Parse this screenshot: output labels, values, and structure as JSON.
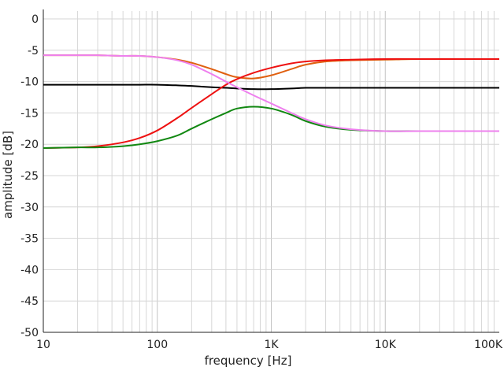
{
  "chart_data": {
    "type": "line",
    "title": "",
    "xlabel": "frequency [Hz]",
    "ylabel": "amplitude [dB]",
    "x_scale": "log",
    "xlim": [
      10,
      100000
    ],
    "ylim": [
      -50,
      0
    ],
    "x_ticks": [
      10,
      100,
      1000,
      10000,
      100000
    ],
    "x_tick_labels": [
      "10",
      "100",
      "1K",
      "10K",
      "100K"
    ],
    "y_ticks": [
      0,
      -5,
      -10,
      -15,
      -20,
      -25,
      -30,
      -35,
      -40,
      -45,
      -50
    ],
    "y_tick_labels": [
      "0",
      "-5",
      "-10",
      "-15",
      "-20",
      "-25",
      "-30",
      "-35",
      "-40",
      "-45",
      "-50"
    ],
    "grid": true,
    "legend": "none",
    "x": [
      10,
      20,
      30,
      50,
      70,
      100,
      150,
      200,
      300,
      400,
      500,
      700,
      1000,
      1500,
      2000,
      3000,
      5000,
      10000,
      20000,
      50000,
      100000
    ],
    "series": [
      {
        "color": "#000000",
        "values": [
          -10.5,
          -10.5,
          -10.5,
          -10.5,
          -10.5,
          -10.5,
          -10.6,
          -10.7,
          -10.9,
          -11.0,
          -11.1,
          -11.2,
          -11.2,
          -11.1,
          -11.0,
          -11.0,
          -11.0,
          -11.0,
          -11.0,
          -11.0,
          -11.0
        ]
      },
      {
        "color": "#e06010",
        "values": [
          -5.8,
          -5.8,
          -5.8,
          -5.9,
          -5.9,
          -6.1,
          -6.5,
          -7.0,
          -8.0,
          -8.8,
          -9.3,
          -9.5,
          -9.0,
          -8.0,
          -7.3,
          -6.8,
          -6.6,
          -6.5,
          -6.4,
          -6.4,
          -6.4
        ]
      },
      {
        "color": "#ee1111",
        "values": [
          -20.6,
          -20.5,
          -20.3,
          -19.7,
          -19.0,
          -17.8,
          -15.8,
          -14.2,
          -12.0,
          -10.5,
          -9.6,
          -8.6,
          -7.8,
          -7.1,
          -6.8,
          -6.6,
          -6.5,
          -6.4,
          -6.4,
          -6.4,
          -6.4
        ]
      },
      {
        "color": "#118811",
        "values": [
          -20.6,
          -20.5,
          -20.5,
          -20.3,
          -20.0,
          -19.5,
          -18.6,
          -17.5,
          -16.0,
          -15.0,
          -14.3,
          -14.0,
          -14.3,
          -15.3,
          -16.3,
          -17.2,
          -17.7,
          -17.9,
          -17.9,
          -17.9,
          -17.9
        ]
      },
      {
        "color": "#ee80ee",
        "values": [
          -5.8,
          -5.8,
          -5.8,
          -5.9,
          -5.9,
          -6.1,
          -6.6,
          -7.3,
          -8.8,
          -10.0,
          -10.9,
          -12.2,
          -13.5,
          -15.0,
          -16.0,
          -17.0,
          -17.6,
          -17.9,
          -17.9,
          -17.9,
          -17.9
        ]
      }
    ]
  }
}
